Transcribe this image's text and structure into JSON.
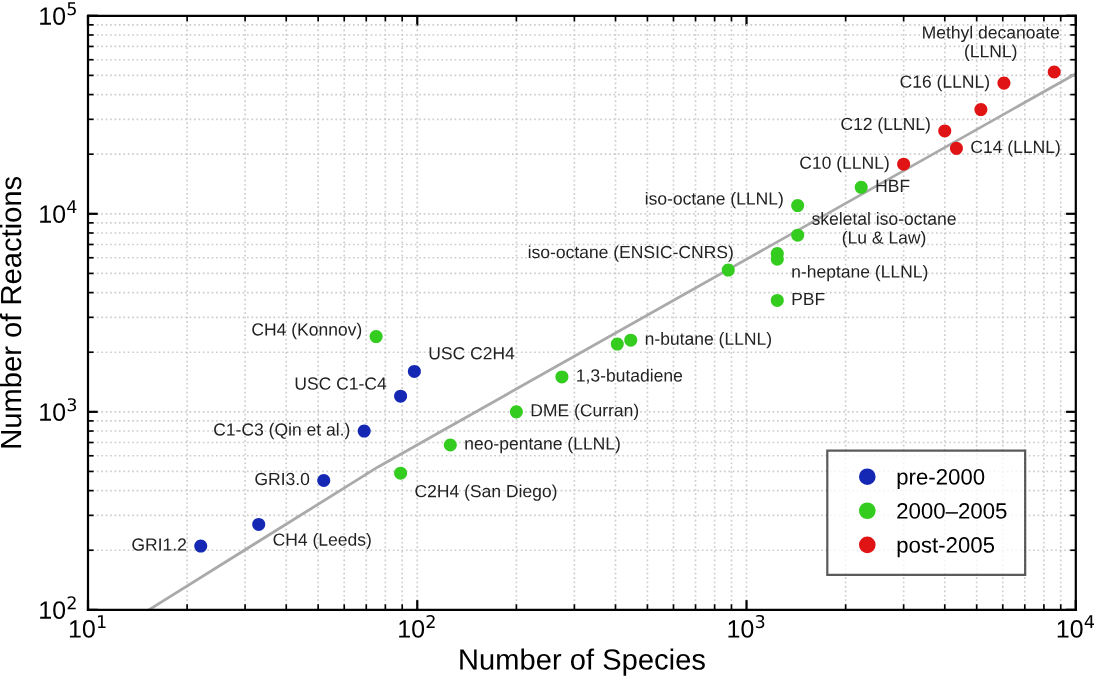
{
  "chart_data": {
    "type": "scatter",
    "xlabel": "Number of Species",
    "ylabel": "Number of Reactions",
    "log": "xy",
    "grid": true,
    "legend": "bottom right",
    "marker": "circle",
    "xlim": [
      10,
      10000
    ],
    "ylim": [
      100,
      100000
    ],
    "xticks": [
      {
        "value": 10,
        "label": "10$^{1}$"
      },
      {
        "value": 100,
        "label": "10$^{2}$"
      },
      {
        "value": 1000,
        "label": "10$^{3}$"
      },
      {
        "value": 10000,
        "label": "10$^{4}$"
      }
    ],
    "yticks": [
      {
        "value": 100,
        "label": "10$^{2}$"
      },
      {
        "value": 1000,
        "label": "10$^{3}$"
      },
      {
        "value": 10000,
        "label": "10$^{4}$"
      },
      {
        "value": 100000,
        "label": "10$^{5}$"
      }
    ],
    "series": [
      {
        "name": "pre-2000",
        "color": "#1428b4",
        "x": [
          22,
          33,
          52,
          69,
          89,
          98
        ],
        "values": [
          210,
          270,
          450,
          800,
          1200,
          1600
        ]
      },
      {
        "name": "2000–2005",
        "color": "#33cc1f",
        "x": [
          75,
          89,
          126,
          200,
          275,
          405,
          445,
          880,
          1240,
          1240,
          1240,
          1430,
          1430,
          2230
        ],
        "values": [
          2400,
          490,
          680,
          1000,
          1500,
          2200,
          2300,
          5200,
          6300,
          5900,
          3650,
          7800,
          11000,
          13600
        ]
      },
      {
        "name": "post-2005",
        "color": "#e01414",
        "x": [
          3000,
          4000,
          4340,
          5150,
          6050,
          8600
        ],
        "values": [
          17800,
          26200,
          21400,
          33600,
          45700,
          52000
        ]
      },
      {
        "type": "line",
        "color": "#aaaaaa",
        "marker": "none",
        "x": [
          15.3,
          76,
          10000
        ],
        "values": [
          100,
          527,
          51000
        ]
      }
    ],
    "annotations": [
      {
        "text": "GRI1.2",
        "x": 22,
        "y": 210
      },
      {
        "text": "CH4 (Leeds)",
        "x": 33,
        "y": 270
      },
      {
        "text": "GRI3.0",
        "x": 52,
        "y": 450
      },
      {
        "text": "C1-C3 (Qin et al.)",
        "x": 69,
        "y": 800
      },
      {
        "text": "USC C1-C4",
        "x": 89,
        "y": 1200
      },
      {
        "text": "USC C2H4",
        "x": 98,
        "y": 1600
      },
      {
        "text": "CH4 (Konnov)",
        "x": 75,
        "y": 2400
      },
      {
        "text": "C2H4 (San Diego)",
        "x": 89,
        "y": 490
      },
      {
        "text": "neo-pentane (LLNL)",
        "x": 126,
        "y": 680
      },
      {
        "text": "DME (Curran)",
        "x": 200,
        "y": 1000
      },
      {
        "text": "1,3-butadiene",
        "x": 275,
        "y": 1500
      },
      {
        "text": "n-butane (LLNL)",
        "x": 445,
        "y": 2300
      },
      {
        "text": "iso-octane (ENSIC-CNRS)",
        "x": 880,
        "y": 5200
      },
      {
        "text": "n-heptane (LLNL)",
        "x": 1240,
        "y": 5900
      },
      {
        "text": "PBF",
        "x": 1240,
        "y": 3650
      },
      {
        "text": "skeletal iso-octane\n(Lu & Law)",
        "x": 1430,
        "y": 7800
      },
      {
        "text": "iso-octane (LLNL)",
        "x": 1430,
        "y": 11000
      },
      {
        "text": "HBF",
        "x": 2230,
        "y": 13600
      },
      {
        "text": "C10 (LLNL)",
        "x": 3000,
        "y": 17800
      },
      {
        "text": "C14 (LLNL)",
        "x": 4340,
        "y": 21400
      },
      {
        "text": "C12 (LLNL)",
        "x": 4000,
        "y": 26200
      },
      {
        "text": "C16 (LLNL)",
        "x": 6050,
        "y": 45700
      },
      {
        "text": "Methyl decanoate\n(LLNL)",
        "x": 8600,
        "y": 52000
      }
    ]
  }
}
